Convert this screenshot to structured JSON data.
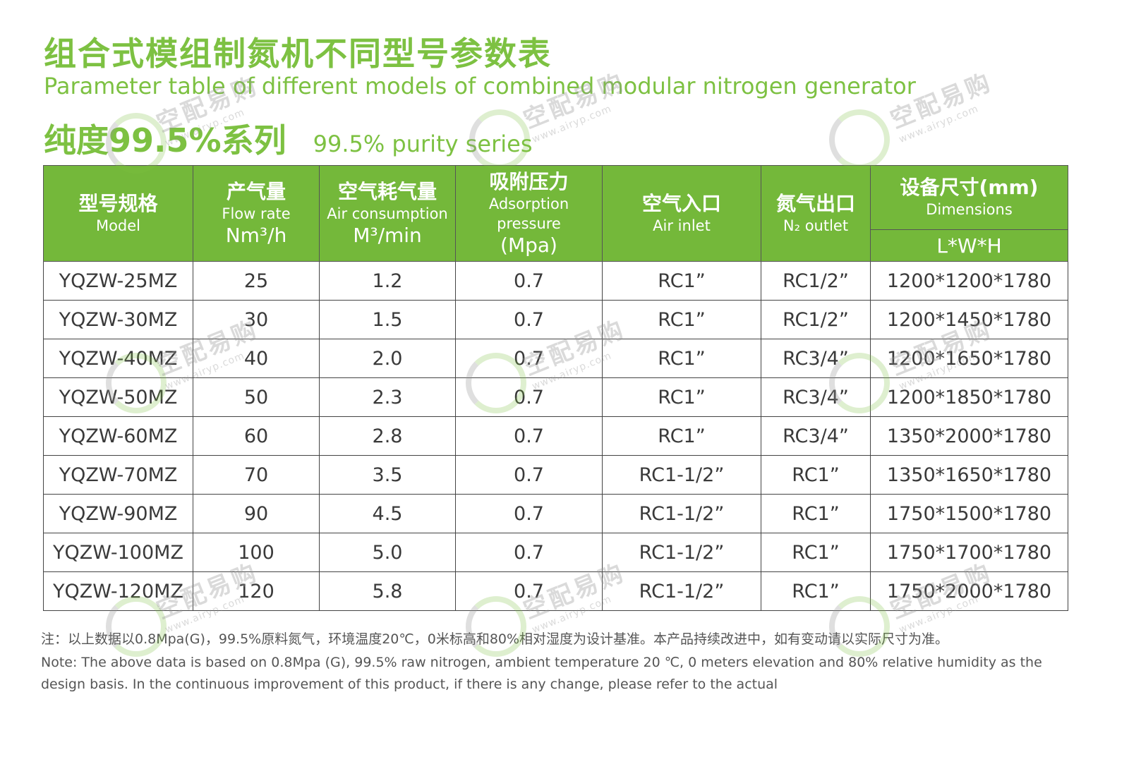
{
  "title_cn": "组合式模组制氮机不同型号参数表",
  "title_en": "Parameter table of different models of combined modular nitrogen generator",
  "series_cn": "纯度99.5%系列",
  "series_en": "99.5% purity series",
  "table": {
    "headers": {
      "model": {
        "cn": "型号规格",
        "en": "Model"
      },
      "flow": {
        "cn": "产气量",
        "en": "Flow rate",
        "unit": "Nm³/h"
      },
      "air_consumption": {
        "cn": "空气耗气量",
        "en": "Air consumption",
        "unit": "M³/min"
      },
      "pressure": {
        "cn": "吸附压力",
        "en": "Adsorption pressure",
        "unit": "(Mpa)"
      },
      "air_inlet": {
        "cn": "空气入口",
        "en": "Air inlet"
      },
      "n2_outlet": {
        "cn": "氮气出口",
        "en": "N₂ outlet"
      },
      "dimensions": {
        "cn": "设备尺寸(mm)",
        "en": "Dimensions",
        "sub": "L*W*H"
      }
    },
    "rows": [
      [
        "YQZW-25MZ",
        "25",
        "1.2",
        "0.7",
        "RC1”",
        "RC1/2”",
        "1200*1200*1780"
      ],
      [
        "YQZW-30MZ",
        "30",
        "1.5",
        "0.7",
        "RC1”",
        "RC1/2”",
        "1200*1450*1780"
      ],
      [
        "YQZW-40MZ",
        "40",
        "2.0",
        "0.7",
        "RC1”",
        "RC3/4”",
        "1200*1650*1780"
      ],
      [
        "YQZW-50MZ",
        "50",
        "2.3",
        "0.7",
        "RC1”",
        "RC3/4”",
        "1200*1850*1780"
      ],
      [
        "YQZW-60MZ",
        "60",
        "2.8",
        "0.7",
        "RC1”",
        "RC3/4”",
        "1350*2000*1780"
      ],
      [
        "YQZW-70MZ",
        "70",
        "3.5",
        "0.7",
        "RC1-1/2”",
        "RC1”",
        "1350*1650*1780"
      ],
      [
        "YQZW-90MZ",
        "90",
        "4.5",
        "0.7",
        "RC1-1/2”",
        "RC1”",
        "1750*1500*1780"
      ],
      [
        "YQZW-100MZ",
        "100",
        "5.0",
        "0.7",
        "RC1-1/2”",
        "RC1”",
        "1750*1700*1780"
      ],
      [
        "YQZW-120MZ",
        "120",
        "5.8",
        "0.7",
        "RC1-1/2”",
        "RC1”",
        "1750*2000*1780"
      ]
    ]
  },
  "note_cn": "注：以上数据以0.8Mpa(G)，99.5%原料氮气，环境温度20℃，0米标高和80%相对湿度为设计基准。本产品持续改进中，如有变动请以实际尺寸为准。",
  "note_en": "Note: The above data is based on 0.8Mpa (G), 99.5% raw nitrogen, ambient temperature 20 ℃, 0 meters elevation and 80% relative humidity as the design basis. In the continuous improvement of this product, if there is any change, please refer to the actual",
  "watermark": {
    "text": "空配易购",
    "url": "www.airyp.com"
  },
  "colors": {
    "accent": "#7dc142",
    "header_bg": "#74b83a"
  }
}
